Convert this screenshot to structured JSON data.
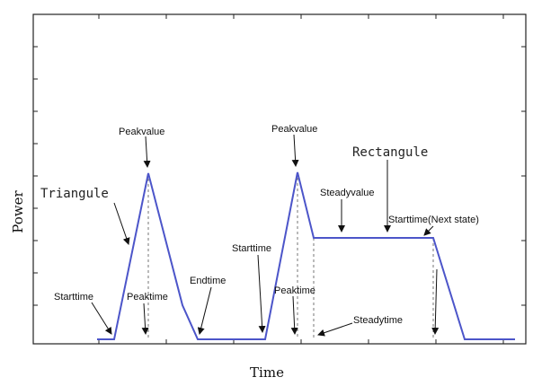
{
  "axes": {
    "y_title": "Power",
    "x_title": "Time"
  },
  "labels": {
    "triangle_title": "Triangule",
    "rectangle_title": "Rectangule",
    "peakvalue_1": "Peakvalue",
    "peakvalue_2": "Peakvalue",
    "starttime_1": "Starttime",
    "peaktime_1": "Peaktime",
    "endtime": "Endtime",
    "starttime_2": "Starttime",
    "peaktime_2": "Peaktime",
    "steadyvalue": "Steadyvalue",
    "steadytime": "Steadytime",
    "starttime_next": "Starttime(Next state)"
  },
  "colors": {
    "curve": "#4c55c9",
    "frame": "#222222",
    "annotation": "#111111"
  }
}
